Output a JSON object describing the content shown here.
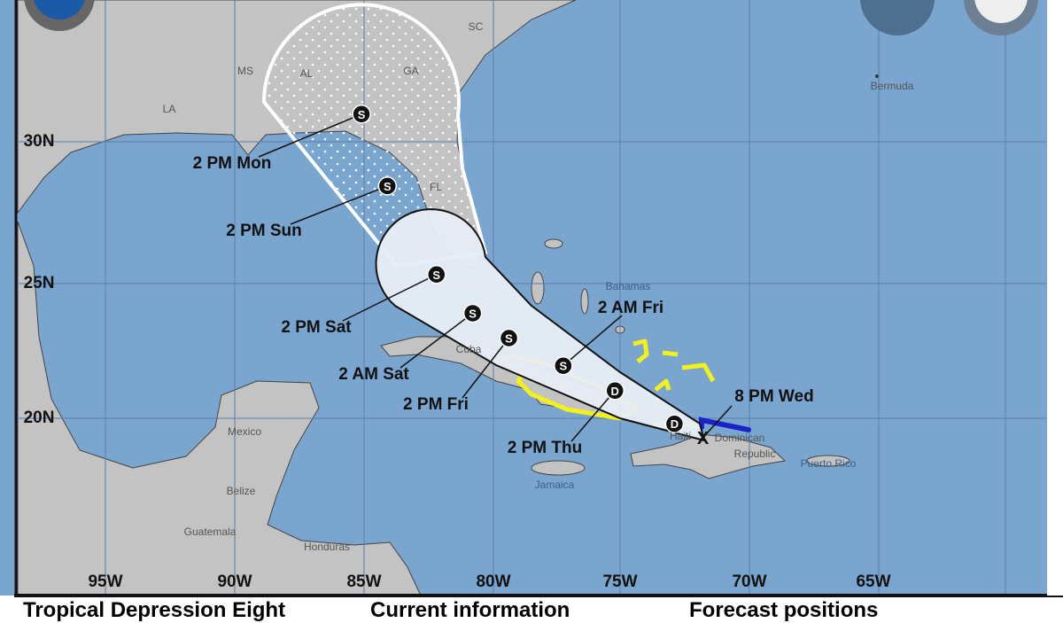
{
  "map": {
    "colors": {
      "water": "#7aa5cf",
      "land": "#c3c3c3",
      "cone_day13": "#e8edf5",
      "warning": "#f2f21a",
      "watch": "#1a22c8"
    },
    "lon_labels": [
      "95W",
      "90W",
      "85W",
      "80W",
      "75W",
      "70W",
      "65W"
    ],
    "lat_labels": [
      "30N",
      "25N",
      "20N"
    ],
    "places": [
      {
        "name": "MS"
      },
      {
        "name": "AL"
      },
      {
        "name": "GA"
      },
      {
        "name": "SC"
      },
      {
        "name": "LA"
      },
      {
        "name": "FL"
      },
      {
        "name": "Bermuda"
      },
      {
        "name": "Bahamas"
      },
      {
        "name": "Cuba"
      },
      {
        "name": "Mexico"
      },
      {
        "name": "Belize"
      },
      {
        "name": "Guatemala"
      },
      {
        "name": "Honduras"
      },
      {
        "name": "Jamaica"
      },
      {
        "name": "Haiti"
      },
      {
        "name": "Dominican"
      },
      {
        "name": "Republic"
      },
      {
        "name": "Puerto Rico"
      }
    ],
    "current_position": {
      "label": "8 PM Wed",
      "symbol": "X",
      "lat": 19.3,
      "lon": -71.9
    },
    "forecast_points": [
      {
        "symbol": "D",
        "label": "",
        "lat": 19.8,
        "lon": -73.0
      },
      {
        "symbol": "D",
        "label": "2 PM Thu",
        "lat": 21.0,
        "lon": -75.3
      },
      {
        "symbol": "S",
        "label": "2 AM Fri",
        "lat": 21.9,
        "lon": -77.3
      },
      {
        "symbol": "S",
        "label": "2 PM Fri",
        "lat": 22.9,
        "lon": -79.4
      },
      {
        "symbol": "S",
        "label": "2 AM Sat",
        "lat": 23.8,
        "lon": -80.8
      },
      {
        "symbol": "S",
        "label": "2 PM Sat",
        "lat": 25.2,
        "lon": -82.2
      },
      {
        "symbol": "S",
        "label": "2 PM Sun",
        "lat": 28.4,
        "lon": -84.1
      },
      {
        "symbol": "S",
        "label": "2 PM Mon",
        "lat": 31.0,
        "lon": -85.1
      }
    ]
  },
  "footer": {
    "title": "Tropical Depression Eight",
    "current": "Current information",
    "forecast": "Forecast positions"
  }
}
